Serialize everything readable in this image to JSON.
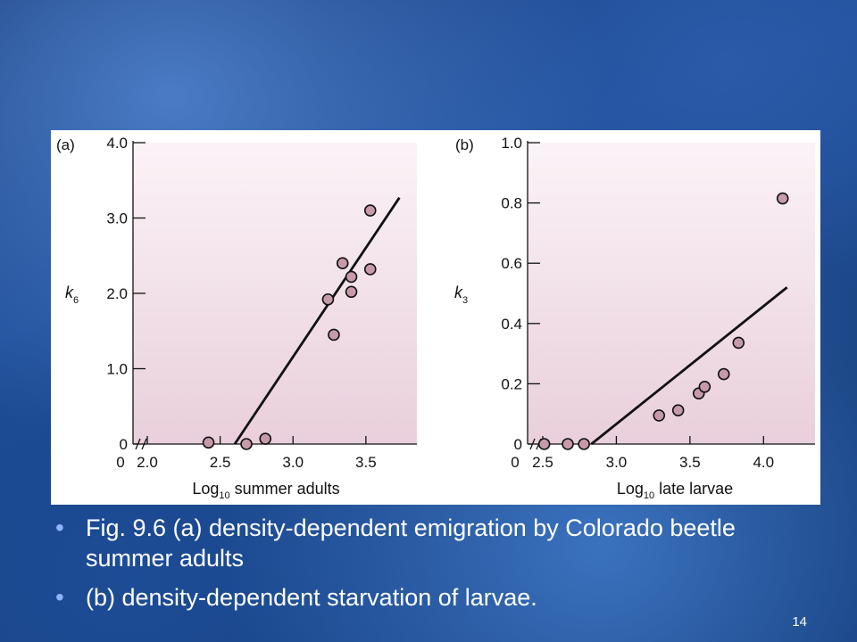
{
  "slide": {
    "number": "14",
    "bullets": [
      "Fig. 9.6 (a) density-dependent emigration by Colorado beetle summer adults",
      "(b) density-dependent starvation of larvae."
    ]
  },
  "colors": {
    "plot_bg_top": "#fbf3f7",
    "plot_bg_bottom": "#e9cfdb",
    "marker_fill": "#c79aaa",
    "marker_stroke": "#111111",
    "line": "#111111"
  },
  "chart_data": [
    {
      "type": "scatter",
      "panel_label": "(a)",
      "xlabel": "Log",
      "xlabel_sub": "10",
      "xlabel_rest": "summer adults",
      "ylabel": "k",
      "ylabel_sub": "6",
      "xlim": [
        2.0,
        3.85
      ],
      "ylim": [
        0,
        4.0
      ],
      "xticks": [
        {
          "v": 2.0,
          "label": "2.0"
        },
        {
          "v": 2.5,
          "label": "2.5"
        },
        {
          "v": 3.0,
          "label": "3.0"
        },
        {
          "v": 3.5,
          "label": "3.5"
        }
      ],
      "yticks": [
        {
          "v": 0,
          "label": "0"
        },
        {
          "v": 1.0,
          "label": "1.0"
        },
        {
          "v": 2.0,
          "label": "2.0"
        },
        {
          "v": 3.0,
          "label": "3.0"
        },
        {
          "v": 4.0,
          "label": "4.0"
        }
      ],
      "x_origin_label": "0",
      "axis_break": true,
      "grid": false,
      "points": [
        {
          "x": 2.42,
          "y": 0.02
        },
        {
          "x": 2.68,
          "y": 0.0
        },
        {
          "x": 2.81,
          "y": 0.07
        },
        {
          "x": 3.24,
          "y": 1.92
        },
        {
          "x": 3.28,
          "y": 1.45
        },
        {
          "x": 3.34,
          "y": 2.4
        },
        {
          "x": 3.4,
          "y": 2.22
        },
        {
          "x": 3.4,
          "y": 2.02
        },
        {
          "x": 3.53,
          "y": 3.1
        },
        {
          "x": 3.53,
          "y": 2.32
        }
      ],
      "fit_line": [
        {
          "x": 2.6,
          "y": 0.0
        },
        {
          "x": 3.73,
          "y": 3.27
        }
      ]
    },
    {
      "type": "scatter",
      "panel_label": "(b)",
      "xlabel": "Log",
      "xlabel_sub": "10",
      "xlabel_rest": "late larvae",
      "ylabel": "k",
      "ylabel_sub": "3",
      "xlim": [
        2.5,
        4.35
      ],
      "ylim": [
        0,
        1.0
      ],
      "xticks": [
        {
          "v": 2.5,
          "label": "2.5"
        },
        {
          "v": 3.0,
          "label": "3.0"
        },
        {
          "v": 3.5,
          "label": "3.5"
        },
        {
          "v": 4.0,
          "label": "4.0"
        }
      ],
      "yticks": [
        {
          "v": 0,
          "label": "0"
        },
        {
          "v": 0.2,
          "label": "0.2"
        },
        {
          "v": 0.4,
          "label": "0.4"
        },
        {
          "v": 0.6,
          "label": "0.6"
        },
        {
          "v": 0.8,
          "label": "0.8"
        },
        {
          "v": 1.0,
          "label": "1.0"
        }
      ],
      "x_origin_label": "0",
      "axis_break": true,
      "grid": false,
      "points": [
        {
          "x": 2.51,
          "y": 0.0
        },
        {
          "x": 2.67,
          "y": 0.0
        },
        {
          "x": 2.78,
          "y": 0.0
        },
        {
          "x": 3.29,
          "y": 0.095
        },
        {
          "x": 3.42,
          "y": 0.112
        },
        {
          "x": 3.56,
          "y": 0.168
        },
        {
          "x": 3.6,
          "y": 0.19
        },
        {
          "x": 3.73,
          "y": 0.232
        },
        {
          "x": 3.83,
          "y": 0.336
        },
        {
          "x": 4.13,
          "y": 0.815
        }
      ],
      "fit_line": [
        {
          "x": 2.83,
          "y": 0.0
        },
        {
          "x": 4.16,
          "y": 0.52
        }
      ]
    }
  ]
}
